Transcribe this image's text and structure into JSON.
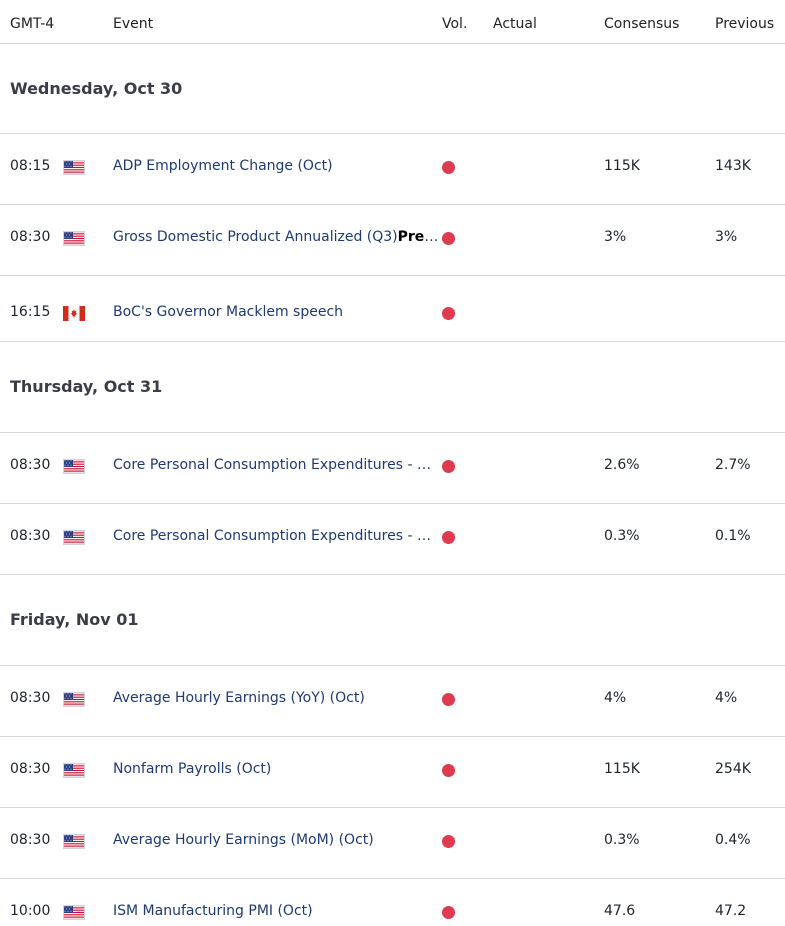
{
  "header": {
    "timezone": "GMT-4",
    "event": "Event",
    "vol": "Vol.",
    "actual": "Actual",
    "consensus": "Consensus",
    "previous": "Previous"
  },
  "days": [
    {
      "label": "Wednesday, Oct 30",
      "events": [
        {
          "time": "08:15",
          "flag": "us-flag-icon",
          "name": "ADP Employment Change (Oct)",
          "suffix": "",
          "consensus": "115K",
          "previous": "143K"
        },
        {
          "time": "08:30",
          "flag": "us-flag-icon",
          "name": "Gross Domestic Product Annualized (Q3)",
          "suffix": "Preli…",
          "consensus": "3%",
          "previous": "3%"
        },
        {
          "time": "16:15",
          "flag": "ca-flag-icon",
          "name": "BoC's Governor Macklem speech",
          "suffix": "",
          "consensus": "",
          "previous": ""
        }
      ]
    },
    {
      "label": "Thursday, Oct 31",
      "events": [
        {
          "time": "08:30",
          "flag": "us-flag-icon",
          "name": "Core Personal Consumption Expenditures - Pr…",
          "suffix": "",
          "consensus": "2.6%",
          "previous": "2.7%"
        },
        {
          "time": "08:30",
          "flag": "us-flag-icon",
          "name": "Core Personal Consumption Expenditures - Pr…",
          "suffix": "",
          "consensus": "0.3%",
          "previous": "0.1%"
        }
      ]
    },
    {
      "label": "Friday, Nov 01",
      "events": [
        {
          "time": "08:30",
          "flag": "us-flag-icon",
          "name": "Average Hourly Earnings (YoY) (Oct)",
          "suffix": "",
          "consensus": "4%",
          "previous": "4%"
        },
        {
          "time": "08:30",
          "flag": "us-flag-icon",
          "name": "Nonfarm Payrolls (Oct)",
          "suffix": "",
          "consensus": "115K",
          "previous": "254K"
        },
        {
          "time": "08:30",
          "flag": "us-flag-icon",
          "name": "Average Hourly Earnings (MoM) (Oct)",
          "suffix": "",
          "consensus": "0.3%",
          "previous": "0.4%"
        },
        {
          "time": "10:00",
          "flag": "us-flag-icon",
          "name": "ISM Manufacturing PMI (Oct)",
          "suffix": "",
          "consensus": "47.6",
          "previous": "47.2"
        }
      ]
    }
  ],
  "colors": {
    "volatility_dot": "#de3b4f",
    "event_text": "#1e3a72",
    "divider": "#d6d9de"
  }
}
